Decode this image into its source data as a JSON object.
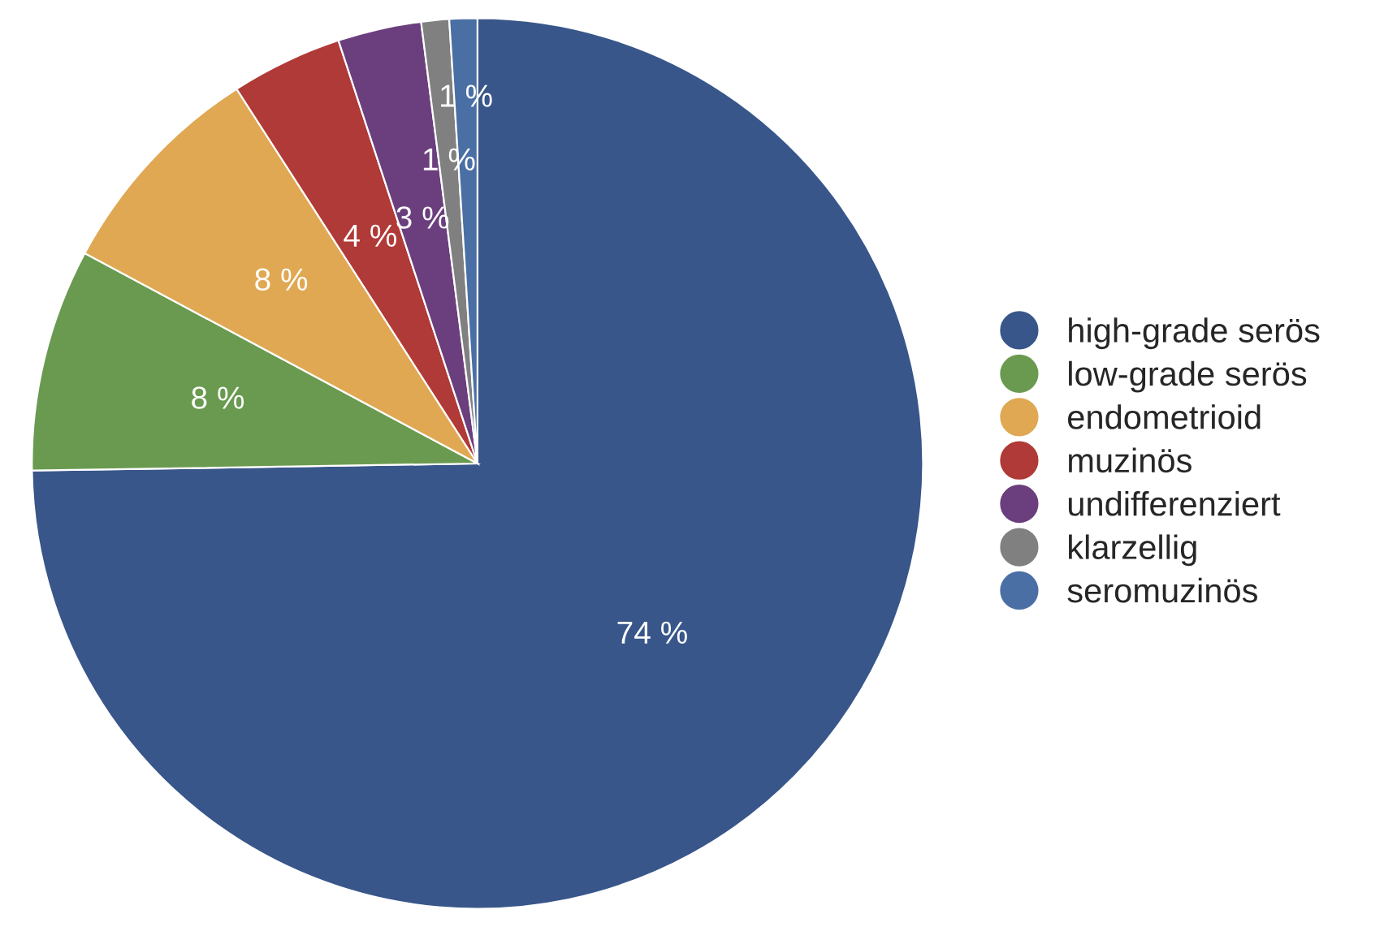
{
  "chart_data": {
    "type": "pie",
    "categories": [
      "high-grade serös",
      "low-grade serös",
      "endometrioid",
      "muzinös",
      "undifferenziert",
      "klarzellig",
      "seromuzinös"
    ],
    "values": [
      74,
      8,
      8,
      4,
      3,
      1,
      1
    ],
    "value_labels": [
      "74 %",
      "8 %",
      "8 %",
      "4 %",
      "3 %",
      "1 %",
      "1 %"
    ],
    "colors": [
      "#38568a",
      "#6a9a50",
      "#e0a852",
      "#b03a37",
      "#6b3f7e",
      "#808080",
      "#4a6fa5"
    ],
    "legend": "right"
  }
}
